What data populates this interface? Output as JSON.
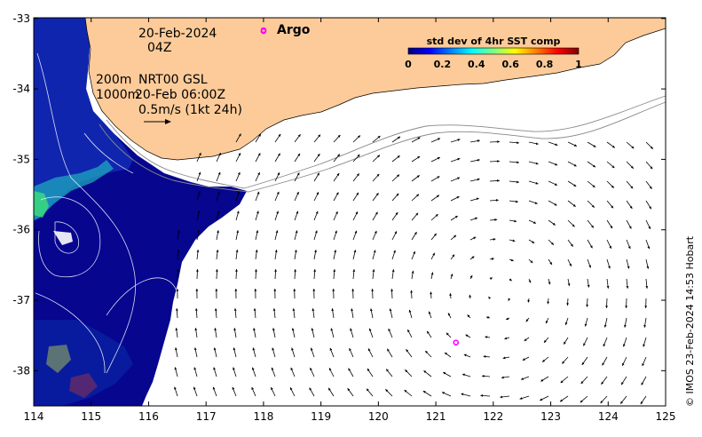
{
  "map": {
    "date_line1": "20-Feb-2024",
    "date_line2": "04Z",
    "depth_200": "200m",
    "depth_1000": "1000m",
    "product_label": "NRT00 GSL",
    "product_time": "20-Feb 06:00Z",
    "scale_text": "0.5m/s (1kt 24h)",
    "argo_label": "Argo",
    "credit": "© IMOS 23-Feb-2024 14:53 Hobart"
  },
  "colorbar": {
    "title": "std dev of 4hr SST comp",
    "ticks": [
      "0",
      "0.2",
      "0.4",
      "0.6",
      "0.8",
      "1"
    ],
    "colors": [
      "#00007f",
      "#0000ff",
      "#007fff",
      "#00ffff",
      "#7fff7f",
      "#ffff00",
      "#ff7f00",
      "#ff0000",
      "#7f0000"
    ]
  },
  "axes": {
    "lon_ticks": [
      "114",
      "115",
      "116",
      "117",
      "118",
      "119",
      "120",
      "121",
      "122",
      "123",
      "124",
      "125"
    ],
    "lat_ticks": [
      "-33",
      "-34",
      "-35",
      "-36",
      "-37",
      "-38"
    ]
  },
  "colors": {
    "land": "#fccb99",
    "deep_sst": "#06068f",
    "argo": "#ff00ff"
  },
  "argo_floats": [
    {
      "lon": 118.0,
      "lat": -33.18
    },
    {
      "lon": 121.35,
      "lat": -37.6
    }
  ]
}
